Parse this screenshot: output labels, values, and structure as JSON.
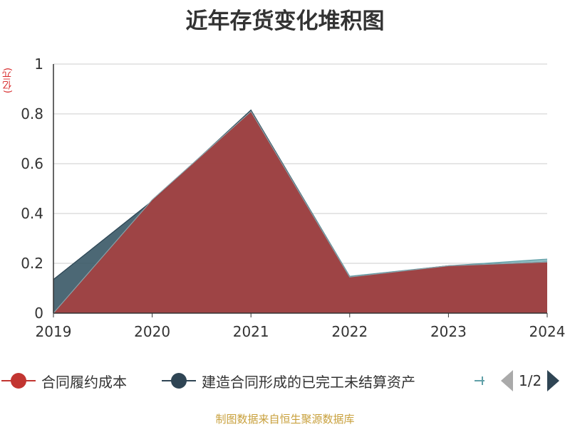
{
  "chart_data": {
    "type": "area",
    "title": "近年存货变化堆积图",
    "unit_label": "(亿元)",
    "x": [
      "2019",
      "2020",
      "2021",
      "2022",
      "2023",
      "2024"
    ],
    "ylim": [
      0,
      1
    ],
    "y_ticks": [
      "0",
      "0.2",
      "0.4",
      "0.6",
      "0.8",
      "1"
    ],
    "grid": true,
    "legend_position": "bottom",
    "series": [
      {
        "name": "合同履约成本",
        "color": "#c23531",
        "values": [
          0,
          0.455,
          0.81,
          0.145,
          0.19,
          0.205
        ]
      },
      {
        "name": "建造合同形成的已完工未结算资产",
        "color": "#2f4554",
        "values": [
          0.135,
          0.45,
          0.815,
          0.145,
          0.19,
          0.205
        ]
      },
      {
        "name": "",
        "color": "#61a0a8",
        "values": [
          0.135,
          0.45,
          0.815,
          0.148,
          0.19,
          0.217
        ]
      }
    ]
  },
  "legend": {
    "items": [
      {
        "label": "合同履约成本",
        "color": "#c23531"
      },
      {
        "label": "建造合同形成的已完工未结算资产",
        "color": "#2f4554"
      }
    ],
    "partial_item_color": "#61a0a8",
    "page_indicator": "1/2"
  },
  "source": "制图数据来自恒生聚源数据库"
}
